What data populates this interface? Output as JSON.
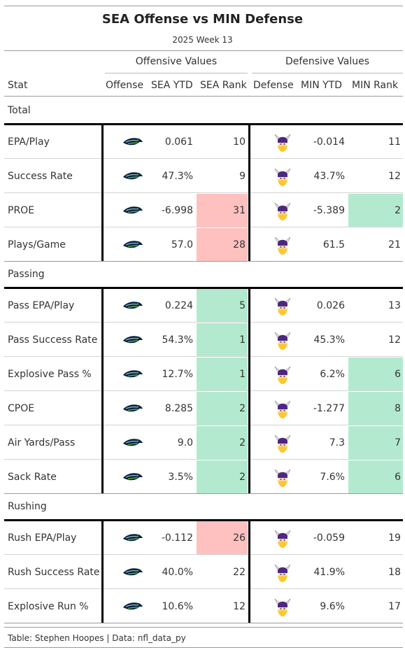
{
  "title": "SEA Offense vs MIN Defense",
  "subtitle": "2025 Week 13",
  "spanners": {
    "offense": "Offensive Values",
    "defense": "Defensive Values"
  },
  "columns": {
    "stat": "Stat",
    "offense": "Offense",
    "sea_ytd": "SEA YTD",
    "sea_rank": "SEA Rank",
    "defense": "Defense",
    "min_ytd": "MIN YTD",
    "min_rank": "MIN Rank"
  },
  "colors": {
    "good": "#b3eacf",
    "bad": "#ffc0c0",
    "seahawks_navy": "#002244",
    "seahawks_green": "#69be28",
    "vikings_purple": "#4f2683",
    "vikings_gold": "#ffc62f"
  },
  "logos": {
    "offense": "seahawks-logo-icon",
    "defense": "vikings-logo-icon"
  },
  "chart_data": {
    "type": "table",
    "title": "SEA Offense vs MIN Defense",
    "subtitle": "2025 Week 13",
    "groups": [
      {
        "name": "Total",
        "rows": [
          {
            "stat": "EPA/Play",
            "sea_ytd": "0.061",
            "sea_rank": 10,
            "sea_shade": "none",
            "min_ytd": "-0.014",
            "min_rank": 11,
            "min_shade": "none"
          },
          {
            "stat": "Success Rate",
            "sea_ytd": "47.3%",
            "sea_rank": 9,
            "sea_shade": "none",
            "min_ytd": "43.7%",
            "min_rank": 12,
            "min_shade": "none"
          },
          {
            "stat": "PROE",
            "sea_ytd": "-6.998",
            "sea_rank": 31,
            "sea_shade": "bad",
            "min_ytd": "-5.389",
            "min_rank": 2,
            "min_shade": "good"
          },
          {
            "stat": "Plays/Game",
            "sea_ytd": "57.0",
            "sea_rank": 28,
            "sea_shade": "bad",
            "min_ytd": "61.5",
            "min_rank": 21,
            "min_shade": "none"
          }
        ]
      },
      {
        "name": "Passing",
        "rows": [
          {
            "stat": "Pass EPA/Play",
            "sea_ytd": "0.224",
            "sea_rank": 5,
            "sea_shade": "good",
            "min_ytd": "0.026",
            "min_rank": 13,
            "min_shade": "none"
          },
          {
            "stat": "Pass Success Rate",
            "sea_ytd": "54.3%",
            "sea_rank": 1,
            "sea_shade": "good",
            "min_ytd": "45.3%",
            "min_rank": 12,
            "min_shade": "none"
          },
          {
            "stat": "Explosive Pass %",
            "sea_ytd": "12.7%",
            "sea_rank": 1,
            "sea_shade": "good",
            "min_ytd": "6.2%",
            "min_rank": 6,
            "min_shade": "good"
          },
          {
            "stat": "CPOE",
            "sea_ytd": "8.285",
            "sea_rank": 2,
            "sea_shade": "good",
            "min_ytd": "-1.277",
            "min_rank": 8,
            "min_shade": "good"
          },
          {
            "stat": "Air Yards/Pass",
            "sea_ytd": "9.0",
            "sea_rank": 2,
            "sea_shade": "good",
            "min_ytd": "7.3",
            "min_rank": 7,
            "min_shade": "good"
          },
          {
            "stat": "Sack Rate",
            "sea_ytd": "3.5%",
            "sea_rank": 2,
            "sea_shade": "good",
            "min_ytd": "7.6%",
            "min_rank": 6,
            "min_shade": "good"
          }
        ]
      },
      {
        "name": "Rushing",
        "rows": [
          {
            "stat": "Rush EPA/Play",
            "sea_ytd": "-0.112",
            "sea_rank": 26,
            "sea_shade": "bad",
            "min_ytd": "-0.059",
            "min_rank": 19,
            "min_shade": "none"
          },
          {
            "stat": "Rush Success Rate",
            "sea_ytd": "40.0%",
            "sea_rank": 22,
            "sea_shade": "none",
            "min_ytd": "41.9%",
            "min_rank": 18,
            "min_shade": "none"
          },
          {
            "stat": "Explosive Run %",
            "sea_ytd": "10.6%",
            "sea_rank": 12,
            "sea_shade": "none",
            "min_ytd": "9.6%",
            "min_rank": 17,
            "min_shade": "none"
          }
        ]
      }
    ]
  },
  "source": "Table: Stephen Hoopes | Data: nfl_data_py"
}
